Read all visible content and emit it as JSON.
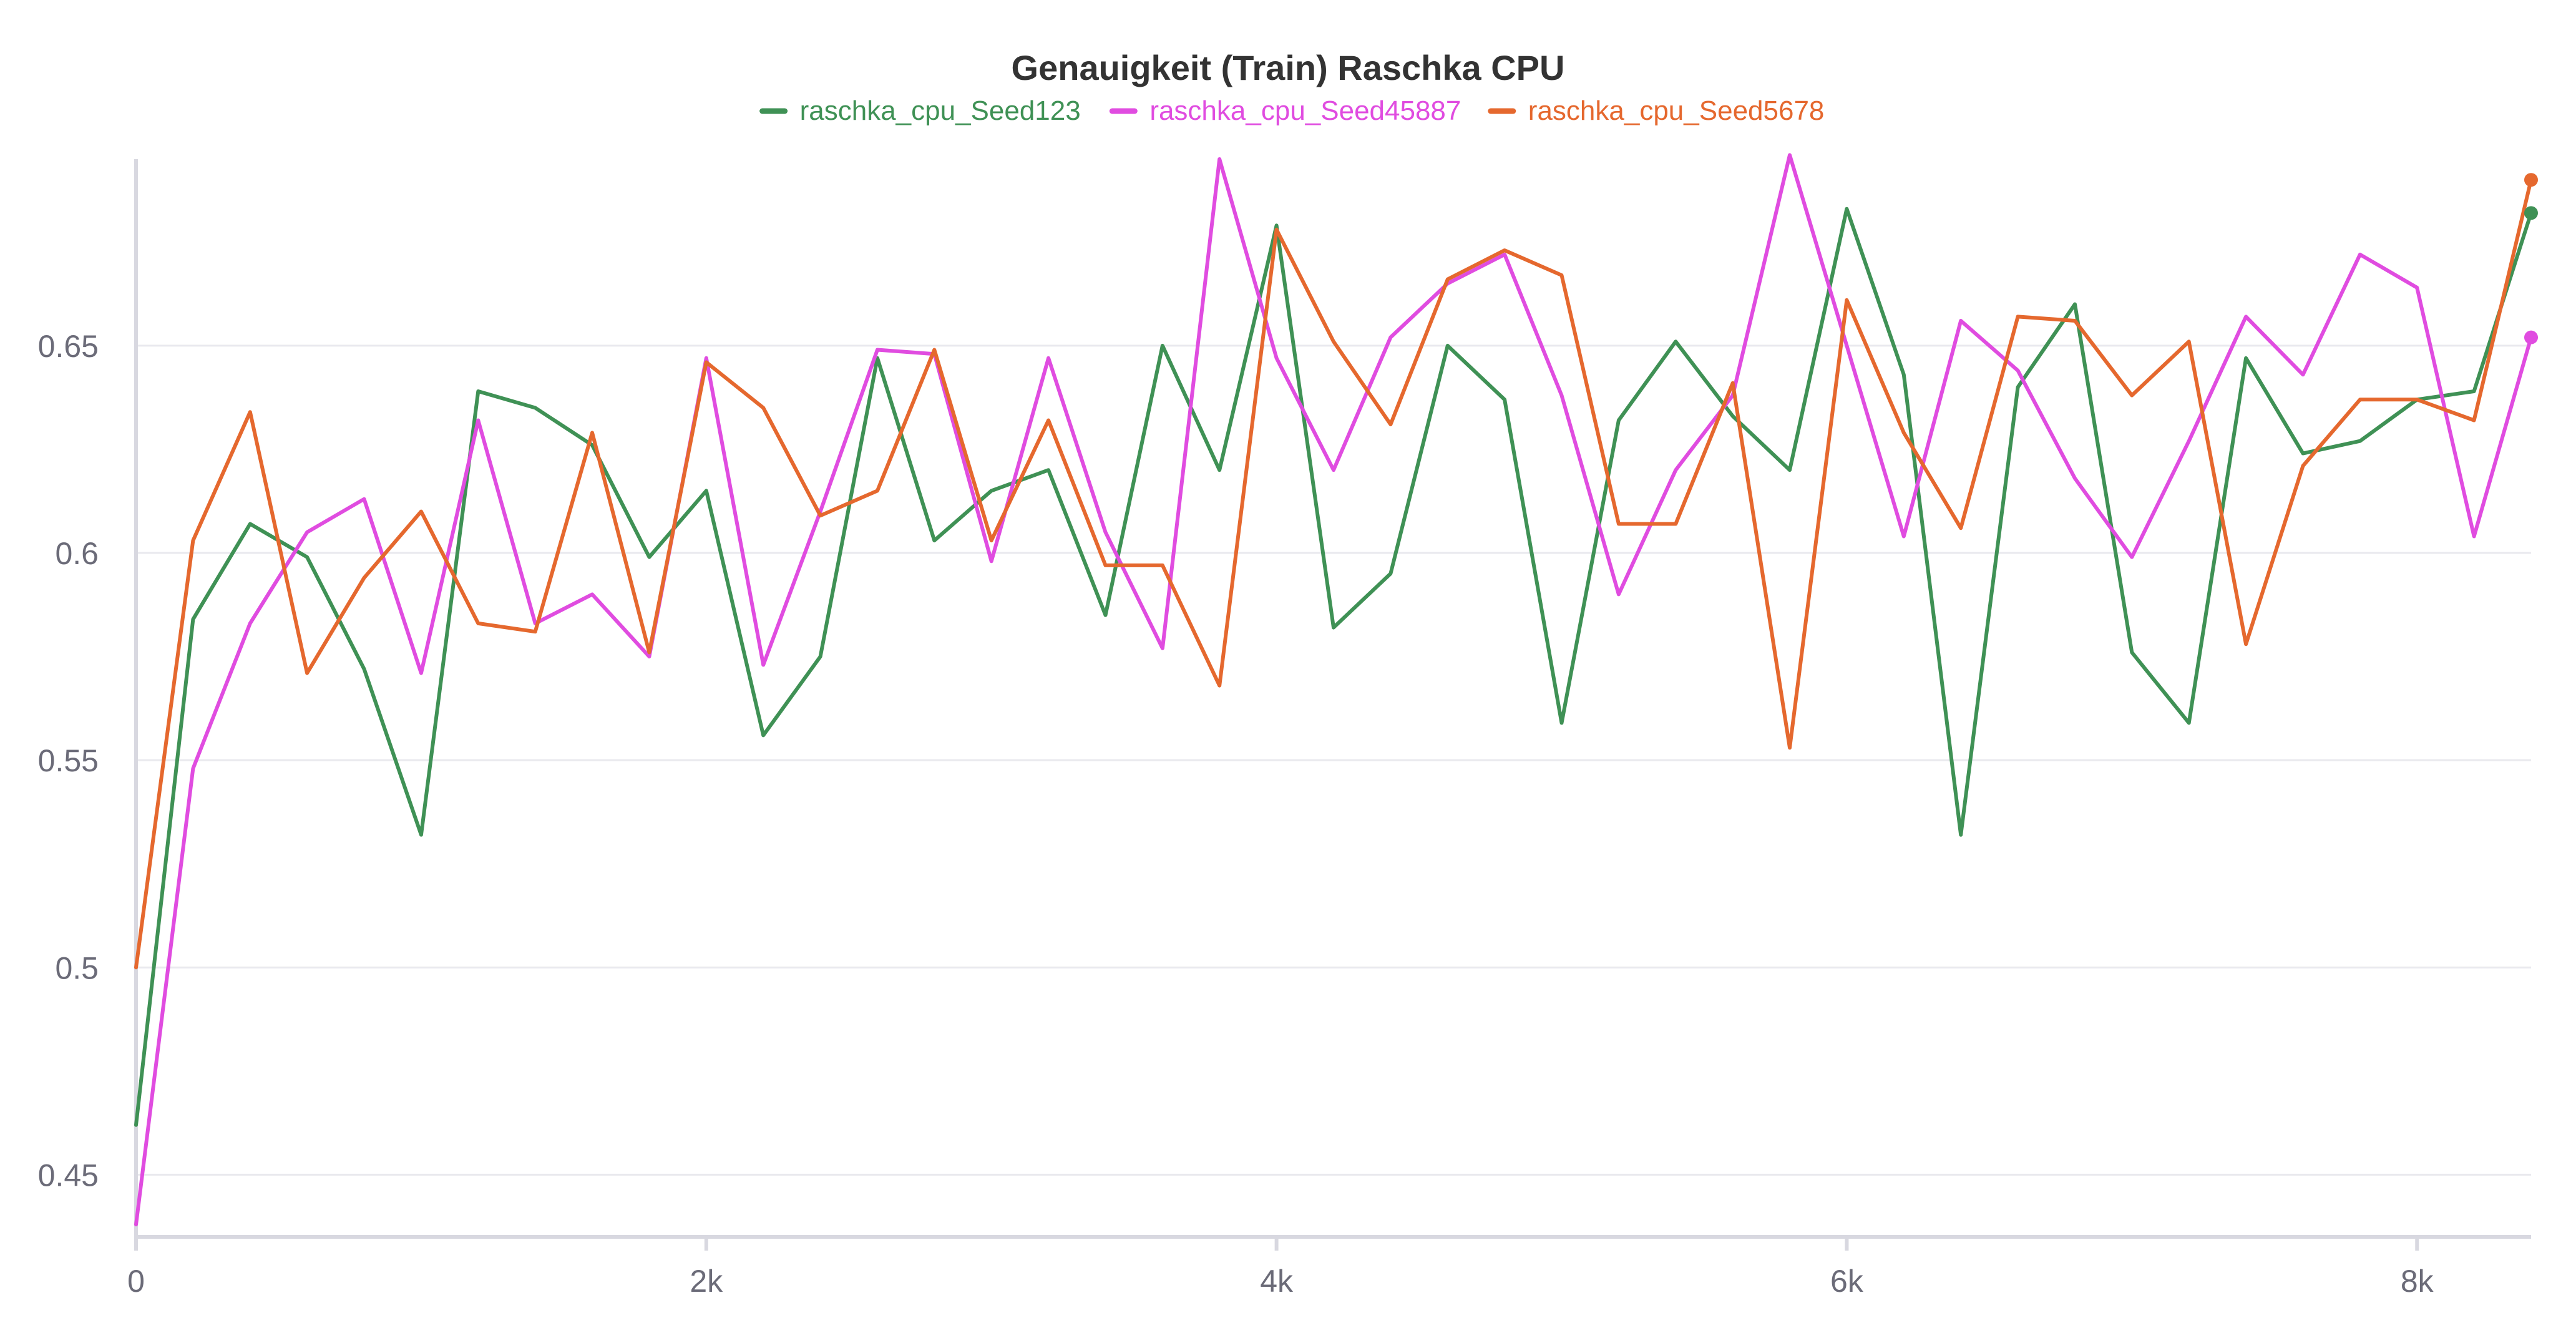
{
  "chart_data": {
    "type": "line",
    "title": "Genauigkeit (Train) Raschka CPU",
    "xlabel": "",
    "ylabel": "",
    "xlim": [
      0,
      8400
    ],
    "ylim": [
      0.435,
      0.695
    ],
    "x_ticks": [
      {
        "value": 0,
        "label": "0"
      },
      {
        "value": 2000,
        "label": "2k"
      },
      {
        "value": 4000,
        "label": "4k"
      },
      {
        "value": 6000,
        "label": "6k"
      },
      {
        "value": 8000,
        "label": "8k"
      }
    ],
    "y_ticks": [
      {
        "value": 0.45,
        "label": "0.45"
      },
      {
        "value": 0.5,
        "label": "0.5"
      },
      {
        "value": 0.55,
        "label": "0.55"
      },
      {
        "value": 0.6,
        "label": "0.6"
      },
      {
        "value": 0.65,
        "label": "0.65"
      }
    ],
    "grid": true,
    "legend_position": "top-center",
    "x": [
      0,
      200,
      400,
      600,
      800,
      1000,
      1200,
      1400,
      1600,
      1800,
      2000,
      2200,
      2400,
      2600,
      2800,
      3000,
      3200,
      3400,
      3600,
      3800,
      4000,
      4200,
      4400,
      4600,
      4800,
      5000,
      5200,
      5400,
      5600,
      5800,
      6000,
      6200,
      6400,
      6600,
      6800,
      7000,
      7200,
      7400,
      7600,
      7800,
      8000,
      8200,
      8400
    ],
    "series": [
      {
        "name": "raschka_cpu_Seed123",
        "color": "#3f9155",
        "values": [
          0.462,
          0.584,
          0.607,
          0.599,
          0.572,
          0.532,
          0.639,
          0.635,
          0.626,
          0.599,
          0.615,
          0.556,
          0.575,
          0.647,
          0.603,
          0.615,
          0.62,
          0.585,
          0.65,
          0.62,
          0.679,
          0.582,
          0.595,
          0.65,
          0.637,
          0.559,
          0.632,
          0.651,
          0.633,
          0.62,
          0.683,
          0.643,
          0.532,
          0.64,
          0.66,
          0.576,
          0.559,
          0.647,
          0.624,
          0.627,
          0.637,
          0.639,
          0.682
        ]
      },
      {
        "name": "raschka_cpu_Seed45887",
        "color": "#e04ce0",
        "values": [
          0.438,
          0.548,
          0.583,
          0.605,
          0.613,
          0.571,
          0.632,
          0.583,
          0.59,
          0.575,
          0.647,
          0.573,
          0.61,
          0.649,
          0.648,
          0.598,
          0.647,
          0.605,
          0.577,
          0.695,
          0.647,
          0.62,
          0.652,
          0.665,
          0.672,
          0.638,
          0.59,
          0.62,
          0.638,
          0.696,
          0.65,
          0.604,
          0.656,
          0.644,
          0.618,
          0.599,
          0.627,
          0.657,
          0.643,
          0.672,
          0.664,
          0.604,
          0.652
        ]
      },
      {
        "name": "raschka_cpu_Seed5678",
        "color": "#e5682e",
        "values": [
          0.5,
          0.603,
          0.634,
          0.571,
          0.594,
          0.61,
          0.583,
          0.581,
          0.629,
          0.576,
          0.646,
          0.635,
          0.609,
          0.615,
          0.649,
          0.603,
          0.632,
          0.597,
          0.597,
          0.568,
          0.678,
          0.651,
          0.631,
          0.666,
          0.673,
          0.667,
          0.607,
          0.607,
          0.641,
          0.553,
          0.661,
          0.629,
          0.606,
          0.657,
          0.656,
          0.638,
          0.651,
          0.578,
          0.621,
          0.637,
          0.637,
          0.632,
          0.69
        ]
      }
    ]
  }
}
